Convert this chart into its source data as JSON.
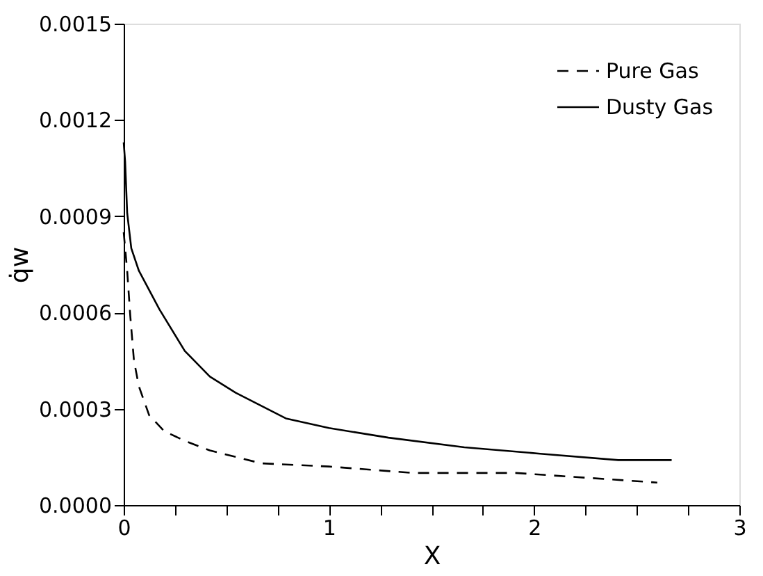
{
  "chart_data": {
    "type": "line",
    "xlabel": "X",
    "ylabel": "q̇w",
    "series": [
      {
        "name": "Pure Gas",
        "color": "#000000",
        "line_style": "dashed",
        "x": [
          0,
          0.017,
          0.032,
          0.05,
          0.074,
          0.124,
          0.198,
          0.298,
          0.42,
          0.67,
          1.0,
          1.41,
          1.91,
          2.6
        ],
        "values": [
          0.00085,
          0.00073,
          0.00059,
          0.00045,
          0.00037,
          0.00028,
          0.00023,
          0.0002,
          0.00017,
          0.00013,
          0.00012,
          0.0001,
          0.0001,
          7e-05
        ]
      },
      {
        "name": "Dusty Gas",
        "color": "#000000",
        "line_style": "solid",
        "x": [
          0,
          0.007,
          0.017,
          0.037,
          0.074,
          0.174,
          0.298,
          0.42,
          0.546,
          0.79,
          1.0,
          1.29,
          1.66,
          2.03,
          2.41,
          2.67
        ],
        "values": [
          0.00113,
          0.00107,
          0.00091,
          0.0008,
          0.00073,
          0.00061,
          0.00048,
          0.0004,
          0.00035,
          0.00027,
          0.00024,
          0.00021,
          0.00018,
          0.00016,
          0.00014,
          0.00014
        ]
      }
    ],
    "xlim": [
      0,
      3
    ],
    "xticks": [
      0,
      {
        "value": 0.25,
        "label": null
      },
      {
        "value": 0.5,
        "label": null
      },
      {
        "value": 0.75,
        "label": null
      },
      1,
      {
        "value": 1.25,
        "label": null
      },
      {
        "value": 1.5,
        "label": null
      },
      {
        "value": 1.75,
        "label": null
      },
      2,
      {
        "value": 2.25,
        "label": null
      },
      {
        "value": 2.5,
        "label": null
      },
      {
        "value": 2.75,
        "label": null
      },
      3
    ],
    "ylim": [
      0,
      0.0015
    ],
    "yticks": [
      {
        "value": 0,
        "label": "0.0000"
      },
      {
        "value": 0.0003,
        "label": "0.0003"
      },
      {
        "value": 0.0006,
        "label": "0.0006"
      },
      {
        "value": 0.0009,
        "label": "0.0009"
      },
      {
        "value": 0.0012,
        "label": "0.0012"
      },
      {
        "value": 0.0015,
        "label": "0.0015"
      }
    ],
    "grid": false,
    "legend": "top right",
    "marker": "none"
  }
}
